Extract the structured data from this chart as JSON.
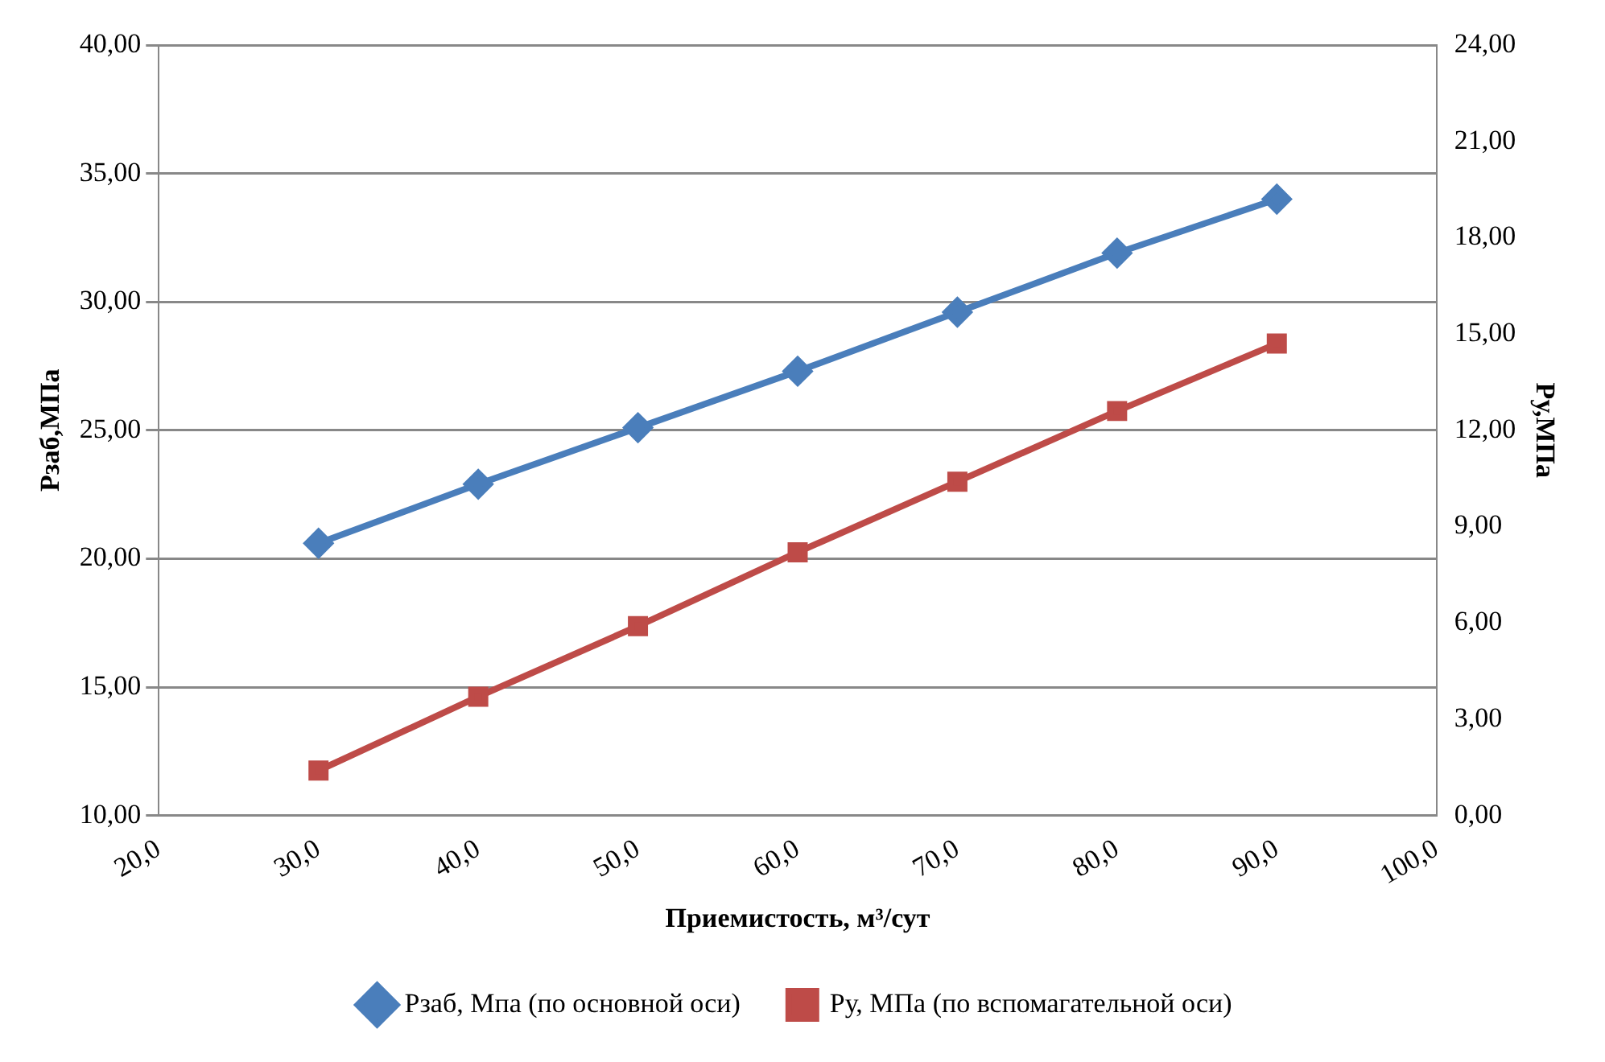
{
  "chart_data": {
    "type": "line",
    "xlabel": "Приемистость, м³/сут",
    "ylabel": "Рзаб,МПа",
    "y2label": "Ру,МПа",
    "x": [
      30,
      40,
      50,
      60,
      70,
      80,
      90
    ],
    "series": [
      {
        "name": "Рзаб, Мпа (по основной оси)",
        "color": "#4a7ebb",
        "marker": "diamond",
        "values": [
          20.6,
          22.9,
          25.1,
          27.3,
          29.6,
          31.9,
          34.0
        ]
      },
      {
        "name": "Ру, МПа (по вспомагательной оси)",
        "color": "#be4b48",
        "marker": "square",
        "axis": "y2",
        "values": [
          1.4,
          3.7,
          5.9,
          8.2,
          10.4,
          12.6,
          14.7
        ]
      }
    ],
    "xlim": [
      20,
      100
    ],
    "xticks": [
      {
        "value": 20,
        "label": "20,0"
      },
      {
        "value": 30,
        "label": "30,0"
      },
      {
        "value": 40,
        "label": "40,0"
      },
      {
        "value": 50,
        "label": "50,0"
      },
      {
        "value": 60,
        "label": "60,0"
      },
      {
        "value": 70,
        "label": "70,0"
      },
      {
        "value": 80,
        "label": "80,0"
      },
      {
        "value": 90,
        "label": "90,0"
      },
      {
        "value": 100,
        "label": "100,0"
      }
    ],
    "ylim": [
      10,
      40
    ],
    "yticks": [
      {
        "value": 10,
        "label": "10,00"
      },
      {
        "value": 15,
        "label": "15,00"
      },
      {
        "value": 20,
        "label": "20,00"
      },
      {
        "value": 25,
        "label": "25,00"
      },
      {
        "value": 30,
        "label": "30,00"
      },
      {
        "value": 35,
        "label": "35,00"
      },
      {
        "value": 40,
        "label": "40,00"
      }
    ],
    "y2lim": [
      0,
      24
    ],
    "y2ticks": [
      {
        "value": 0,
        "label": "0,00"
      },
      {
        "value": 3,
        "label": "3,00"
      },
      {
        "value": 6,
        "label": "6,00"
      },
      {
        "value": 9,
        "label": "9,00"
      },
      {
        "value": 12,
        "label": "12,00"
      },
      {
        "value": 15,
        "label": "15,00"
      },
      {
        "value": 18,
        "label": "18,00"
      },
      {
        "value": 21,
        "label": "21,00"
      },
      {
        "value": 24,
        "label": "24,00"
      }
    ],
    "grid": "y",
    "legend": "bottom",
    "line_style": "solid"
  }
}
